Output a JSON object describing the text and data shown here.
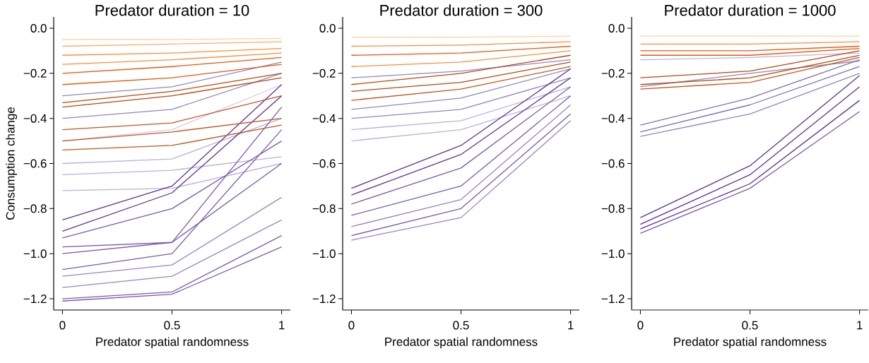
{
  "chart_data": [
    {
      "type": "line",
      "title": "Predator duration = 10",
      "xlabel": "Predator spatial randomness",
      "ylabel": "Consumption change",
      "x": [
        0,
        0.5,
        1
      ],
      "xlim": [
        -0.04,
        1.04
      ],
      "ylim": [
        -1.25,
        0.05
      ],
      "xticks": [
        0,
        0.5,
        1
      ],
      "yticks": [
        {
          "value": -1.2,
          "label": "−1.2"
        },
        {
          "value": -1.0,
          "label": "−1.0"
        },
        {
          "value": -0.8,
          "label": "−0.8"
        },
        {
          "value": -0.6,
          "label": "−0.6"
        },
        {
          "value": -0.4,
          "label": "−0.4"
        },
        {
          "value": -0.2,
          "label": "−0.2"
        },
        {
          "value": 0,
          "label": "0.0"
        }
      ],
      "series": [
        {
          "color": "#d8c8e8",
          "values": [
            -0.5,
            -0.45,
            -0.25
          ]
        },
        {
          "color": "#b9b3dc",
          "values": [
            -0.6,
            -0.58,
            -0.4
          ]
        },
        {
          "color": "#b9b3dc",
          "values": [
            -0.65,
            -0.63,
            -0.57
          ]
        },
        {
          "color": "#b9b3dc",
          "values": [
            -0.72,
            -0.71,
            -0.6
          ]
        },
        {
          "color": "#8f86c4",
          "values": [
            -0.3,
            -0.26,
            -0.15
          ]
        },
        {
          "color": "#8f86c4",
          "values": [
            -0.4,
            -0.36,
            -0.2
          ]
        },
        {
          "color": "#5e3096",
          "values": [
            -0.85,
            -0.7,
            -0.25
          ]
        },
        {
          "color": "#5e3096",
          "values": [
            -0.9,
            -0.73,
            -0.3
          ]
        },
        {
          "color": "#7a5aae",
          "values": [
            -0.93,
            -0.8,
            -0.5
          ]
        },
        {
          "color": "#7a5aae",
          "values": [
            -0.97,
            -0.95,
            -0.35
          ]
        },
        {
          "color": "#7a5aae",
          "values": [
            -1.0,
            -0.95,
            -0.6
          ]
        },
        {
          "color": "#7a5aae",
          "values": [
            -1.07,
            -1.0,
            -0.45
          ]
        },
        {
          "color": "#9a82c6",
          "values": [
            -1.1,
            -1.05,
            -0.75
          ]
        },
        {
          "color": "#9a82c6",
          "values": [
            -1.15,
            -1.1,
            -0.85
          ]
        },
        {
          "color": "#7a5aae",
          "values": [
            -1.2,
            -1.17,
            -0.92
          ]
        },
        {
          "color": "#7a5aae",
          "values": [
            -1.21,
            -1.18,
            -0.97
          ]
        },
        {
          "color": "#fdd0a2",
          "values": [
            -0.05,
            -0.05,
            -0.045
          ]
        },
        {
          "color": "#fdae6b",
          "values": [
            -0.08,
            -0.07,
            -0.06
          ]
        },
        {
          "color": "#f98e3c",
          "values": [
            -0.12,
            -0.11,
            -0.09
          ]
        },
        {
          "color": "#f98e3c",
          "values": [
            -0.16,
            -0.14,
            -0.11
          ]
        },
        {
          "color": "#e6550d",
          "values": [
            -0.2,
            -0.17,
            -0.13
          ]
        },
        {
          "color": "#e6550d",
          "values": [
            -0.25,
            -0.22,
            -0.16
          ]
        },
        {
          "color": "#b8460c",
          "values": [
            -0.33,
            -0.28,
            -0.2
          ]
        },
        {
          "color": "#b8460c",
          "values": [
            -0.35,
            -0.3,
            -0.22
          ]
        },
        {
          "color": "#c0561c",
          "values": [
            -0.45,
            -0.42,
            -0.3
          ]
        },
        {
          "color": "#c0561c",
          "values": [
            -0.5,
            -0.46,
            -0.4
          ]
        },
        {
          "color": "#c0561c",
          "values": [
            -0.54,
            -0.52,
            -0.43
          ]
        }
      ]
    },
    {
      "type": "line",
      "title": "Predator duration = 300",
      "xlabel": "Predator spatial randomness",
      "x": [
        0,
        0.5,
        1
      ],
      "xlim": [
        -0.04,
        1.04
      ],
      "ylim": [
        -1.25,
        0.05
      ],
      "xticks": [
        0,
        0.5,
        1
      ],
      "yticks": [
        {
          "value": -1.2,
          "label": "−1.2"
        },
        {
          "value": -1.0,
          "label": "−1.0"
        },
        {
          "value": -0.8,
          "label": "−0.8"
        },
        {
          "value": -0.6,
          "label": "−0.6"
        },
        {
          "value": -0.4,
          "label": "−0.4"
        },
        {
          "value": -0.2,
          "label": "−0.2"
        },
        {
          "value": 0,
          "label": "0.0"
        }
      ],
      "series": [
        {
          "color": "#8f86c4",
          "values": [
            -0.22,
            -0.19,
            -0.14
          ]
        },
        {
          "color": "#8f86c4",
          "values": [
            -0.36,
            -0.31,
            -0.18
          ]
        },
        {
          "color": "#8f86c4",
          "values": [
            -0.4,
            -0.36,
            -0.22
          ]
        },
        {
          "color": "#b9b3dc",
          "values": [
            -0.45,
            -0.41,
            -0.26
          ]
        },
        {
          "color": "#b9b3dc",
          "values": [
            -0.5,
            -0.45,
            -0.3
          ]
        },
        {
          "color": "#5e3096",
          "values": [
            -0.71,
            -0.52,
            -0.18
          ]
        },
        {
          "color": "#5e3096",
          "values": [
            -0.74,
            -0.56,
            -0.22
          ]
        },
        {
          "color": "#7a5aae",
          "values": [
            -0.78,
            -0.62,
            -0.26
          ]
        },
        {
          "color": "#7a5aae",
          "values": [
            -0.83,
            -0.7,
            -0.3
          ]
        },
        {
          "color": "#9a82c6",
          "values": [
            -0.88,
            -0.76,
            -0.34
          ]
        },
        {
          "color": "#7a5aae",
          "values": [
            -0.92,
            -0.8,
            -0.38
          ]
        },
        {
          "color": "#9a82c6",
          "values": [
            -0.94,
            -0.84,
            -0.41
          ]
        },
        {
          "color": "#fdd0a2",
          "values": [
            -0.04,
            -0.04,
            -0.035
          ]
        },
        {
          "color": "#f98e3c",
          "values": [
            -0.08,
            -0.075,
            -0.06
          ]
        },
        {
          "color": "#e6550d",
          "values": [
            -0.12,
            -0.11,
            -0.08
          ]
        },
        {
          "color": "#f98e3c",
          "values": [
            -0.17,
            -0.15,
            -0.1
          ]
        },
        {
          "color": "#b8460c",
          "values": [
            -0.25,
            -0.2,
            -0.12
          ]
        },
        {
          "color": "#b8460c",
          "values": [
            -0.28,
            -0.24,
            -0.15
          ]
        },
        {
          "color": "#c0561c",
          "values": [
            -0.32,
            -0.27,
            -0.17
          ]
        }
      ]
    },
    {
      "type": "line",
      "title": "Predator duration = 1000",
      "xlabel": "Predator spatial randomness",
      "x": [
        0,
        0.5,
        1
      ],
      "xlim": [
        -0.04,
        1.04
      ],
      "ylim": [
        -1.25,
        0.05
      ],
      "xticks": [
        0,
        0.5,
        1
      ],
      "yticks": [
        {
          "value": -1.2,
          "label": "−1.2"
        },
        {
          "value": -1.0,
          "label": "−1.0"
        },
        {
          "value": -0.8,
          "label": "−0.8"
        },
        {
          "value": -0.6,
          "label": "−0.6"
        },
        {
          "value": -0.4,
          "label": "−0.4"
        },
        {
          "value": -0.2,
          "label": "−0.2"
        },
        {
          "value": 0,
          "label": "0.0"
        }
      ],
      "series": [
        {
          "color": "#b9b3dc",
          "values": [
            -0.14,
            -0.13,
            -0.11
          ]
        },
        {
          "color": "#8f86c4",
          "values": [
            -0.26,
            -0.2,
            -0.145
          ]
        },
        {
          "color": "#7b6fb5",
          "values": [
            -0.43,
            -0.31,
            -0.14
          ]
        },
        {
          "color": "#7b6fb5",
          "values": [
            -0.46,
            -0.34,
            -0.17
          ]
        },
        {
          "color": "#8f86c4",
          "values": [
            -0.48,
            -0.38,
            -0.2
          ]
        },
        {
          "color": "#5e3096",
          "values": [
            -0.84,
            -0.61,
            -0.21
          ]
        },
        {
          "color": "#5e3096",
          "values": [
            -0.87,
            -0.65,
            -0.26
          ]
        },
        {
          "color": "#5e3096",
          "values": [
            -0.89,
            -0.69,
            -0.32
          ]
        },
        {
          "color": "#7a5aae",
          "values": [
            -0.91,
            -0.71,
            -0.37
          ]
        },
        {
          "color": "#fdd0a2",
          "values": [
            -0.035,
            -0.035,
            -0.035
          ]
        },
        {
          "color": "#f98e3c",
          "values": [
            -0.07,
            -0.07,
            -0.06
          ]
        },
        {
          "color": "#e6550d",
          "values": [
            -0.1,
            -0.1,
            -0.08
          ]
        },
        {
          "color": "#e6550d",
          "values": [
            -0.12,
            -0.12,
            -0.09
          ]
        },
        {
          "color": "#b8460c",
          "values": [
            -0.22,
            -0.19,
            -0.1
          ]
        },
        {
          "color": "#b8460c",
          "values": [
            -0.25,
            -0.22,
            -0.12
          ]
        },
        {
          "color": "#c0561c",
          "values": [
            -0.27,
            -0.24,
            -0.13
          ]
        }
      ]
    }
  ]
}
